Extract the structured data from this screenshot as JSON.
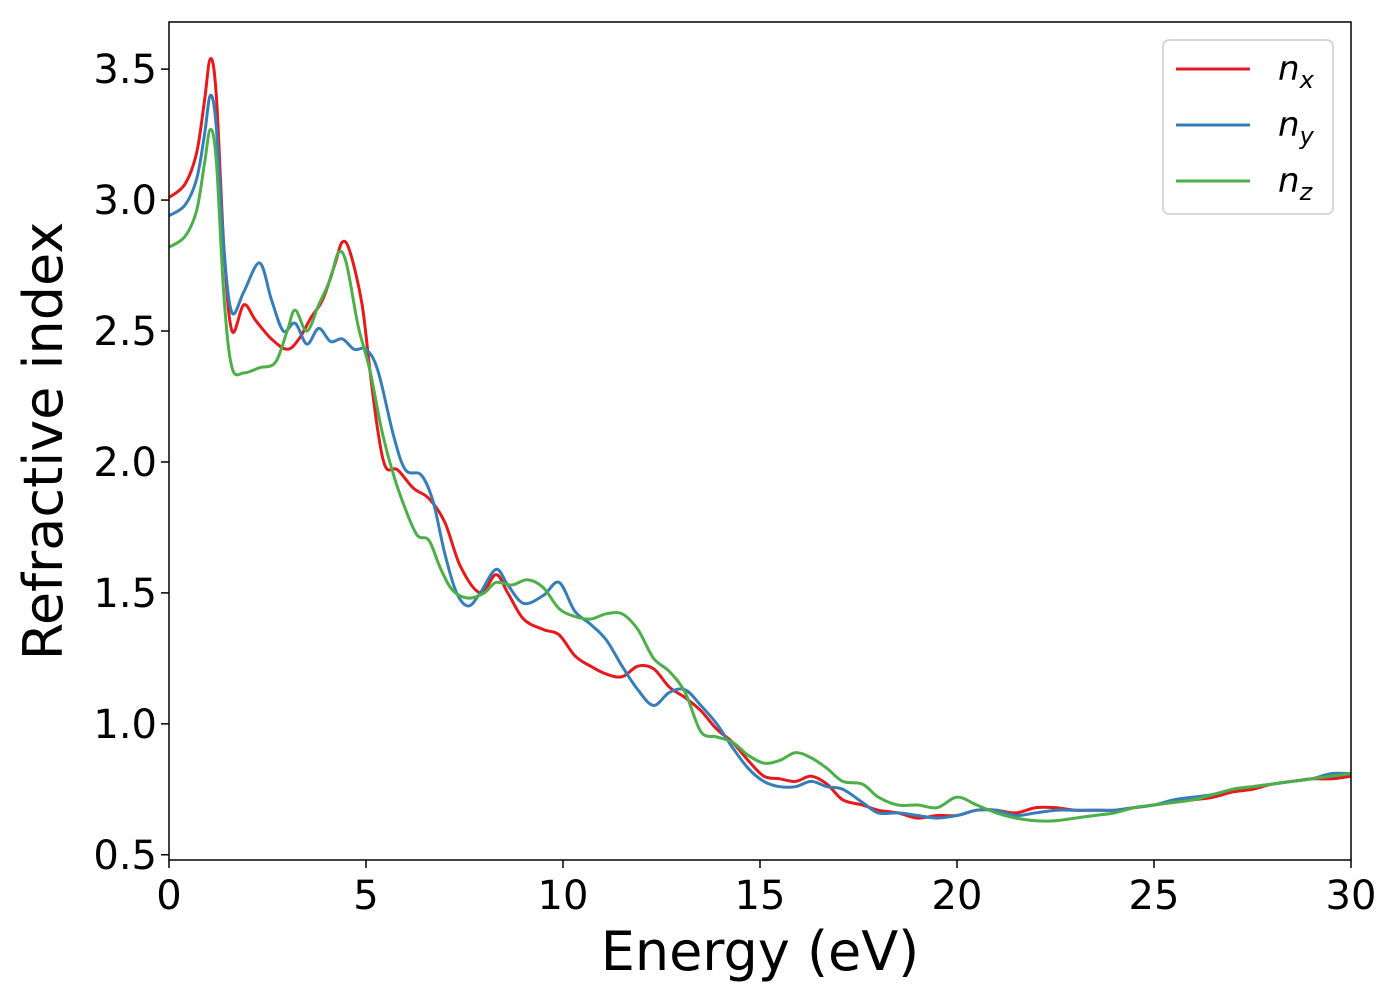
{
  "chart_data": {
    "type": "line",
    "xlabel": "Energy (eV)",
    "ylabel": "Refractive index",
    "xlim": [
      0,
      30
    ],
    "ylim": [
      0.48,
      3.68
    ],
    "grid": false,
    "legend_position": "top-right",
    "x_ticks": [
      0,
      5,
      10,
      15,
      20,
      25,
      30
    ],
    "x_tick_labels": [
      "0",
      "5",
      "10",
      "15",
      "20",
      "25",
      "30"
    ],
    "y_ticks": [
      0.5,
      1.0,
      1.5,
      2.0,
      2.5,
      3.0,
      3.5
    ],
    "y_tick_labels": [
      "0.5",
      "1.0",
      "1.5",
      "2.0",
      "2.5",
      "3.0",
      "3.5"
    ],
    "series": [
      {
        "name": "n",
        "subscript": "x",
        "color": "#e41a1c",
        "points": [
          [
            0,
            3.01
          ],
          [
            0.4,
            3.06
          ],
          [
            0.7,
            3.18
          ],
          [
            0.9,
            3.38
          ],
          [
            1.05,
            3.54
          ],
          [
            1.2,
            3.4
          ],
          [
            1.4,
            2.8
          ],
          [
            1.6,
            2.5
          ],
          [
            1.9,
            2.6
          ],
          [
            2.2,
            2.54
          ],
          [
            2.6,
            2.47
          ],
          [
            3.0,
            2.43
          ],
          [
            3.3,
            2.47
          ],
          [
            3.6,
            2.55
          ],
          [
            3.9,
            2.62
          ],
          [
            4.2,
            2.75
          ],
          [
            4.4,
            2.84
          ],
          [
            4.6,
            2.8
          ],
          [
            4.9,
            2.6
          ],
          [
            5.1,
            2.35
          ],
          [
            5.3,
            2.12
          ],
          [
            5.5,
            1.98
          ],
          [
            5.8,
            1.97
          ],
          [
            6.2,
            1.9
          ],
          [
            6.6,
            1.86
          ],
          [
            7.0,
            1.77
          ],
          [
            7.4,
            1.6
          ],
          [
            7.9,
            1.5
          ],
          [
            8.3,
            1.57
          ],
          [
            8.6,
            1.5
          ],
          [
            9.0,
            1.4
          ],
          [
            9.5,
            1.36
          ],
          [
            9.9,
            1.34
          ],
          [
            10.3,
            1.26
          ],
          [
            10.7,
            1.22
          ],
          [
            11.1,
            1.19
          ],
          [
            11.5,
            1.18
          ],
          [
            11.9,
            1.22
          ],
          [
            12.3,
            1.21
          ],
          [
            12.7,
            1.14
          ],
          [
            13.1,
            1.1
          ],
          [
            13.5,
            1.05
          ],
          [
            13.9,
            0.98
          ],
          [
            14.3,
            0.93
          ],
          [
            14.7,
            0.86
          ],
          [
            15.1,
            0.8
          ],
          [
            15.5,
            0.79
          ],
          [
            15.9,
            0.78
          ],
          [
            16.3,
            0.8
          ],
          [
            16.7,
            0.77
          ],
          [
            17.1,
            0.71
          ],
          [
            17.6,
            0.69
          ],
          [
            18.0,
            0.67
          ],
          [
            18.5,
            0.66
          ],
          [
            19.0,
            0.64
          ],
          [
            19.5,
            0.65
          ],
          [
            20.0,
            0.65
          ],
          [
            20.5,
            0.67
          ],
          [
            21.0,
            0.67
          ],
          [
            21.5,
            0.66
          ],
          [
            22.0,
            0.68
          ],
          [
            22.5,
            0.68
          ],
          [
            23.0,
            0.67
          ],
          [
            23.5,
            0.67
          ],
          [
            24.0,
            0.67
          ],
          [
            24.5,
            0.68
          ],
          [
            25.0,
            0.69
          ],
          [
            25.5,
            0.7
          ],
          [
            26.0,
            0.71
          ],
          [
            26.5,
            0.72
          ],
          [
            27.0,
            0.74
          ],
          [
            27.5,
            0.75
          ],
          [
            28.0,
            0.77
          ],
          [
            28.5,
            0.78
          ],
          [
            29.0,
            0.79
          ],
          [
            29.5,
            0.79
          ],
          [
            30.0,
            0.8
          ]
        ]
      },
      {
        "name": "n",
        "subscript": "y",
        "color": "#377eb8",
        "points": [
          [
            0,
            2.94
          ],
          [
            0.4,
            2.98
          ],
          [
            0.7,
            3.08
          ],
          [
            0.9,
            3.25
          ],
          [
            1.05,
            3.4
          ],
          [
            1.2,
            3.28
          ],
          [
            1.4,
            2.8
          ],
          [
            1.6,
            2.57
          ],
          [
            1.9,
            2.65
          ],
          [
            2.3,
            2.76
          ],
          [
            2.6,
            2.62
          ],
          [
            2.9,
            2.5
          ],
          [
            3.2,
            2.53
          ],
          [
            3.5,
            2.45
          ],
          [
            3.8,
            2.51
          ],
          [
            4.1,
            2.46
          ],
          [
            4.4,
            2.47
          ],
          [
            4.7,
            2.43
          ],
          [
            5.0,
            2.43
          ],
          [
            5.3,
            2.35
          ],
          [
            5.7,
            2.1
          ],
          [
            6.0,
            1.97
          ],
          [
            6.4,
            1.95
          ],
          [
            6.7,
            1.85
          ],
          [
            7.0,
            1.65
          ],
          [
            7.3,
            1.5
          ],
          [
            7.6,
            1.45
          ],
          [
            7.9,
            1.5
          ],
          [
            8.3,
            1.59
          ],
          [
            8.6,
            1.53
          ],
          [
            9.0,
            1.46
          ],
          [
            9.5,
            1.49
          ],
          [
            9.9,
            1.54
          ],
          [
            10.3,
            1.43
          ],
          [
            10.7,
            1.38
          ],
          [
            11.1,
            1.32
          ],
          [
            11.5,
            1.22
          ],
          [
            11.9,
            1.13
          ],
          [
            12.3,
            1.07
          ],
          [
            12.7,
            1.12
          ],
          [
            13.1,
            1.13
          ],
          [
            13.5,
            1.07
          ],
          [
            13.9,
            1.0
          ],
          [
            14.3,
            0.91
          ],
          [
            14.7,
            0.83
          ],
          [
            15.1,
            0.78
          ],
          [
            15.5,
            0.76
          ],
          [
            15.9,
            0.76
          ],
          [
            16.3,
            0.78
          ],
          [
            16.7,
            0.76
          ],
          [
            17.1,
            0.75
          ],
          [
            17.6,
            0.7
          ],
          [
            18.0,
            0.66
          ],
          [
            18.5,
            0.66
          ],
          [
            19.0,
            0.65
          ],
          [
            19.5,
            0.64
          ],
          [
            20.0,
            0.65
          ],
          [
            20.5,
            0.67
          ],
          [
            21.0,
            0.67
          ],
          [
            21.5,
            0.65
          ],
          [
            22.0,
            0.66
          ],
          [
            22.5,
            0.67
          ],
          [
            23.0,
            0.67
          ],
          [
            23.5,
            0.67
          ],
          [
            24.0,
            0.67
          ],
          [
            24.5,
            0.68
          ],
          [
            25.0,
            0.69
          ],
          [
            25.5,
            0.71
          ],
          [
            26.0,
            0.72
          ],
          [
            26.5,
            0.73
          ],
          [
            27.0,
            0.75
          ],
          [
            27.5,
            0.76
          ],
          [
            28.0,
            0.77
          ],
          [
            28.5,
            0.78
          ],
          [
            29.0,
            0.79
          ],
          [
            29.5,
            0.81
          ],
          [
            30.0,
            0.81
          ]
        ]
      },
      {
        "name": "n",
        "subscript": "z",
        "color": "#4daf4a",
        "points": [
          [
            0,
            2.82
          ],
          [
            0.4,
            2.86
          ],
          [
            0.7,
            2.96
          ],
          [
            0.9,
            3.14
          ],
          [
            1.05,
            3.27
          ],
          [
            1.2,
            3.15
          ],
          [
            1.4,
            2.62
          ],
          [
            1.6,
            2.36
          ],
          [
            1.9,
            2.34
          ],
          [
            2.3,
            2.36
          ],
          [
            2.7,
            2.38
          ],
          [
            3.0,
            2.5
          ],
          [
            3.2,
            2.58
          ],
          [
            3.5,
            2.5
          ],
          [
            3.8,
            2.6
          ],
          [
            4.1,
            2.7
          ],
          [
            4.3,
            2.8
          ],
          [
            4.5,
            2.76
          ],
          [
            4.8,
            2.52
          ],
          [
            5.1,
            2.35
          ],
          [
            5.4,
            2.12
          ],
          [
            5.7,
            1.95
          ],
          [
            6.0,
            1.82
          ],
          [
            6.3,
            1.72
          ],
          [
            6.6,
            1.7
          ],
          [
            6.9,
            1.59
          ],
          [
            7.2,
            1.51
          ],
          [
            7.6,
            1.48
          ],
          [
            8.0,
            1.5
          ],
          [
            8.3,
            1.54
          ],
          [
            8.7,
            1.53
          ],
          [
            9.1,
            1.55
          ],
          [
            9.5,
            1.52
          ],
          [
            9.9,
            1.44
          ],
          [
            10.3,
            1.41
          ],
          [
            10.7,
            1.4
          ],
          [
            11.1,
            1.42
          ],
          [
            11.5,
            1.42
          ],
          [
            11.9,
            1.36
          ],
          [
            12.3,
            1.25
          ],
          [
            12.7,
            1.2
          ],
          [
            13.1,
            1.12
          ],
          [
            13.5,
            0.97
          ],
          [
            13.9,
            0.95
          ],
          [
            14.3,
            0.93
          ],
          [
            14.7,
            0.88
          ],
          [
            15.1,
            0.85
          ],
          [
            15.5,
            0.86
          ],
          [
            15.9,
            0.89
          ],
          [
            16.3,
            0.87
          ],
          [
            16.7,
            0.83
          ],
          [
            17.1,
            0.78
          ],
          [
            17.6,
            0.77
          ],
          [
            18.0,
            0.72
          ],
          [
            18.5,
            0.69
          ],
          [
            19.0,
            0.69
          ],
          [
            19.5,
            0.68
          ],
          [
            20.0,
            0.72
          ],
          [
            20.5,
            0.69
          ],
          [
            21.0,
            0.66
          ],
          [
            21.5,
            0.64
          ],
          [
            22.0,
            0.63
          ],
          [
            22.5,
            0.63
          ],
          [
            23.0,
            0.64
          ],
          [
            23.5,
            0.65
          ],
          [
            24.0,
            0.66
          ],
          [
            24.5,
            0.68
          ],
          [
            25.0,
            0.69
          ],
          [
            25.5,
            0.7
          ],
          [
            26.0,
            0.71
          ],
          [
            26.5,
            0.73
          ],
          [
            27.0,
            0.75
          ],
          [
            27.5,
            0.76
          ],
          [
            28.0,
            0.77
          ],
          [
            28.5,
            0.78
          ],
          [
            29.0,
            0.79
          ],
          [
            29.5,
            0.8
          ],
          [
            30.0,
            0.81
          ]
        ]
      }
    ]
  }
}
